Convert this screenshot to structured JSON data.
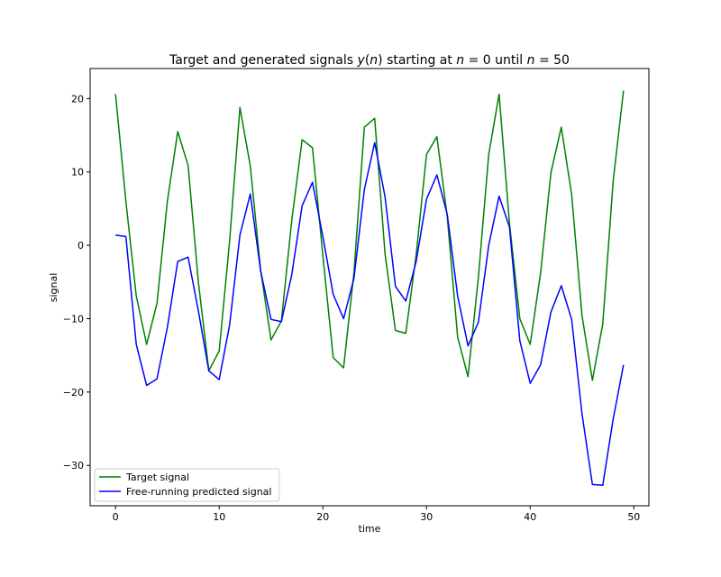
{
  "chart_data": {
    "type": "line",
    "title": "Target and generated signals y(n) starting at n = 0 until n = 50",
    "xlabel": "time",
    "ylabel": "signal",
    "xlim": [
      -2.45,
      51.45
    ],
    "ylim": [
      -35.5,
      24.1
    ],
    "xticks": [
      0,
      10,
      20,
      30,
      40,
      50
    ],
    "yticks": [
      -30,
      -20,
      -10,
      0,
      10,
      20
    ],
    "xtick_labels": [
      "0",
      "10",
      "20",
      "30",
      "40",
      "50"
    ],
    "ytick_labels": [
      "−30",
      "−20",
      "−10",
      "0",
      "10",
      "20"
    ],
    "grid": false,
    "legend_position": "lower-left",
    "x": [
      0,
      1,
      2,
      3,
      4,
      5,
      6,
      7,
      8,
      9,
      10,
      11,
      12,
      13,
      14,
      15,
      16,
      17,
      18,
      19,
      20,
      21,
      22,
      23,
      24,
      25,
      26,
      27,
      28,
      29,
      30,
      31,
      32,
      33,
      34,
      35,
      36,
      37,
      38,
      39,
      40,
      41,
      42,
      43,
      44,
      45,
      46,
      47,
      48,
      49
    ],
    "series": [
      {
        "name": "Target signal",
        "color": "#008000",
        "values": [
          20.6,
          6.0,
          -6.9,
          -13.5,
          -7.9,
          6.0,
          15.5,
          10.9,
          -5.1,
          -17.1,
          -14.4,
          0.5,
          18.8,
          10.8,
          -3.4,
          -12.9,
          -10.3,
          3.4,
          14.4,
          13.3,
          -1.4,
          -15.3,
          -16.7,
          -3.7,
          16.1,
          17.3,
          -1.2,
          -11.6,
          -12.0,
          -1.3,
          12.4,
          14.8,
          3.9,
          -12.5,
          -17.9,
          -4.4,
          12.4,
          20.6,
          3.0,
          -10.0,
          -13.5,
          -3.8,
          9.9,
          16.1,
          6.9,
          -9.6,
          -18.4,
          -10.7,
          8.7,
          21.1
        ]
      },
      {
        "name": "Free-running predicted signal",
        "color": "#0000ff",
        "values": [
          1.4,
          1.2,
          -13.5,
          -19.1,
          -18.2,
          -11.2,
          -2.2,
          -1.6,
          -9.0,
          -17.1,
          -18.3,
          -10.9,
          1.4,
          7.0,
          -3.5,
          -10.1,
          -10.4,
          -4.0,
          5.4,
          8.6,
          1.2,
          -6.7,
          -10.0,
          -4.5,
          7.6,
          14.0,
          6.6,
          -5.6,
          -7.6,
          -2.2,
          6.3,
          9.6,
          4.2,
          -6.9,
          -13.7,
          -10.5,
          0.0,
          6.7,
          2.5,
          -13.0,
          -18.8,
          -16.3,
          -9.1,
          -5.5,
          -10.1,
          -23.0,
          -32.6,
          -32.7,
          -23.7,
          -16.3
        ]
      }
    ]
  }
}
